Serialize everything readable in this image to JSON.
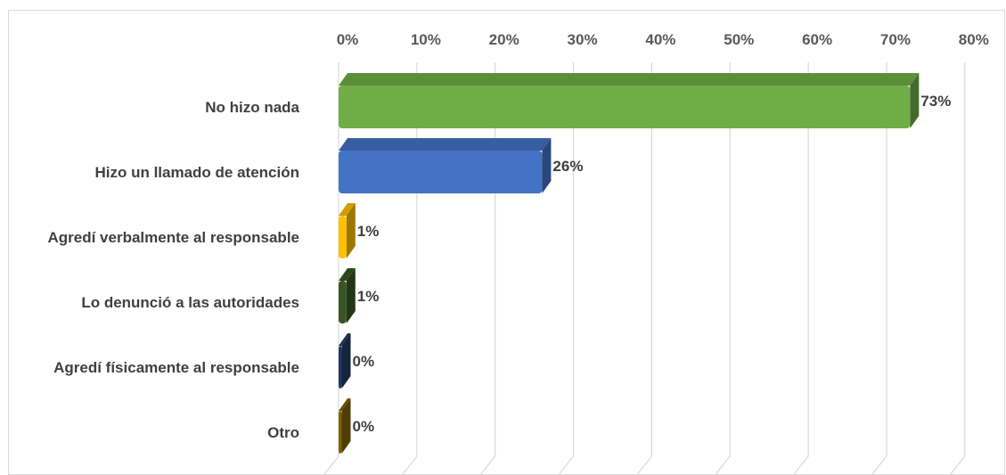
{
  "chart_data": {
    "type": "bar",
    "orientation": "horizontal",
    "title": "",
    "xlabel": "",
    "ylabel": "",
    "xlim": [
      0,
      80
    ],
    "grid": true,
    "legend": "none",
    "x_ticks": [
      "0%",
      "10%",
      "20%",
      "30%",
      "40%",
      "50%",
      "60%",
      "70%",
      "80%"
    ],
    "tick_values": [
      0,
      10,
      20,
      30,
      40,
      50,
      60,
      70,
      80
    ],
    "categories": [
      "No hizo nada",
      "Hizo un llamado de atención",
      "Agredí verbalmente al responsable",
      "Lo denunció a las autoridades",
      "Agredí físicamente al responsable",
      "Otro"
    ],
    "values": [
      73,
      26,
      1,
      1,
      0,
      0
    ],
    "data_labels": [
      "73%",
      "26%",
      "1%",
      "1%",
      "0%",
      "0%"
    ],
    "colors": [
      "#70ad47",
      "#4472c4",
      "#ffc000",
      "#375623",
      "#203864",
      "#7f6000"
    ]
  }
}
